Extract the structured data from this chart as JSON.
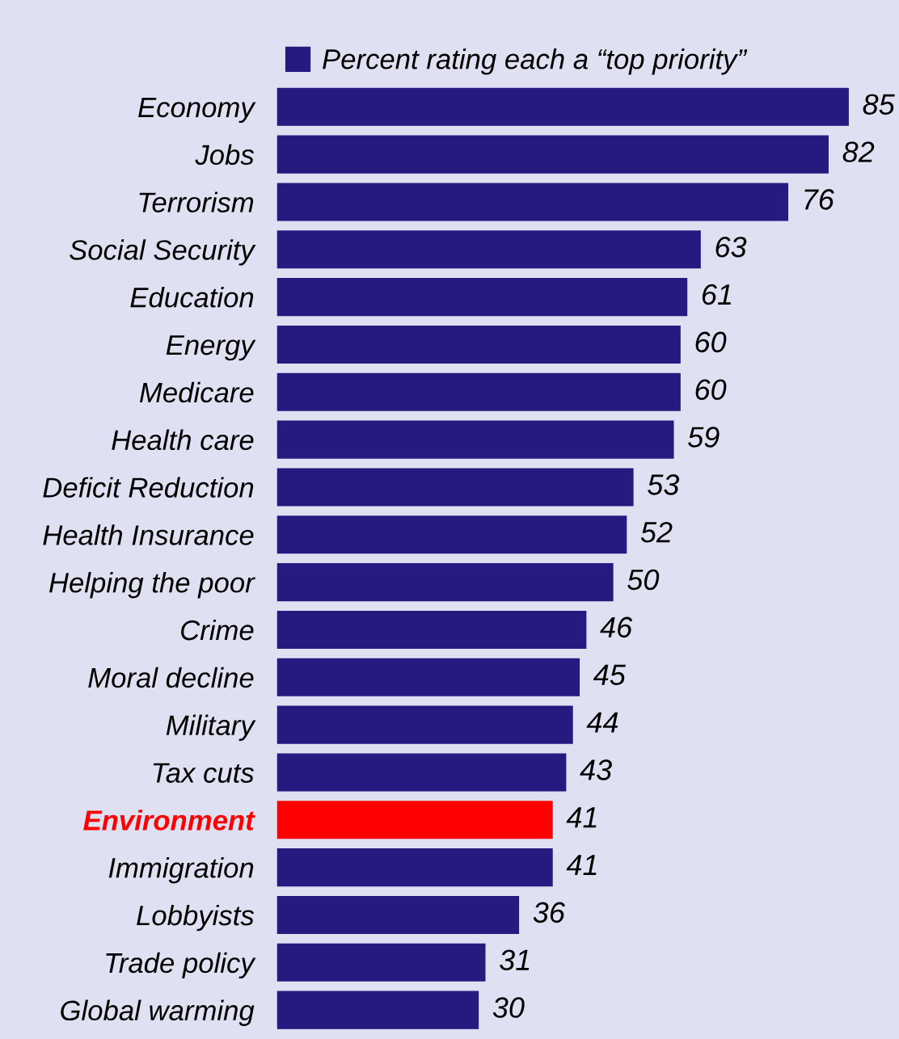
{
  "chart_data": {
    "type": "bar",
    "orientation": "horizontal",
    "legend": "top",
    "data_labels": true,
    "tick_labels": "y",
    "grid": false,
    "categories": [
      "Economy",
      "Jobs",
      "Terrorism",
      "Social Security",
      "Education",
      "Energy",
      "Medicare",
      "Health care",
      "Deficit Reduction",
      "Health Insurance",
      "Helping the poor",
      "Crime",
      "Moral decline",
      "Military",
      "Tax cuts",
      "Environment",
      "Immigration",
      "Lobbyists",
      "Trade policy",
      "Global warming"
    ],
    "series": [
      {
        "name": "Percent rating each a “top priority”",
        "color": "#241a80",
        "values": [
          85,
          82,
          76,
          63,
          61,
          60,
          60,
          59,
          53,
          52,
          50,
          46,
          45,
          44,
          43,
          41,
          41,
          36,
          31,
          30
        ],
        "colors": [
          "#241a80",
          "#241a80",
          "#241a80",
          "#241a80",
          "#241a80",
          "#241a80",
          "#241a80",
          "#241a80",
          "#241a80",
          "#241a80",
          "#241a80",
          "#241a80",
          "#241a80",
          "#241a80",
          "#241a80",
          "#ff0000",
          "#241a80",
          "#241a80",
          "#241a80",
          "#241a80"
        ]
      }
    ]
  }
}
